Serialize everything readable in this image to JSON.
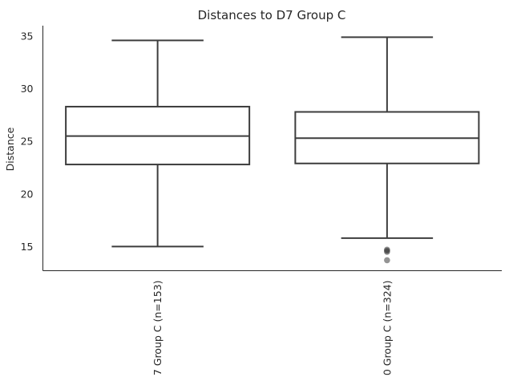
{
  "chart_data": {
    "type": "box",
    "title": "Distances to D7 Group C",
    "ylabel": "Distance",
    "xlabel": "",
    "ylim": [
      12.7,
      36.0
    ],
    "yticks": [
      15,
      20,
      25,
      30,
      35
    ],
    "grid": false,
    "categories": [
      "7 Group C (n=153)",
      "0 Group C (n=324)"
    ],
    "boxes": [
      {
        "category": "7 Group C (n=153)",
        "whisker_low": 15.0,
        "q1": 22.8,
        "median": 25.5,
        "q3": 28.3,
        "whisker_high": 34.6,
        "outliers": []
      },
      {
        "category": "0 Group C (n=324)",
        "whisker_low": 15.8,
        "q1": 22.9,
        "median": 25.3,
        "q3": 27.8,
        "whisker_high": 34.9,
        "outliers": [
          14.7,
          14.6,
          14.5,
          13.7
        ]
      }
    ]
  }
}
